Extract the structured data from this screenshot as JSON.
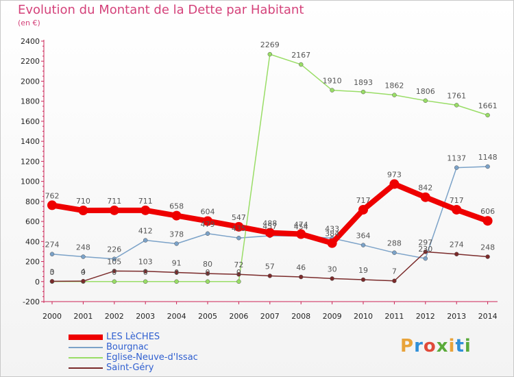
{
  "title": "Evolution du Montant de la Dette par Habitant",
  "subtitle": "(en €)",
  "logo": {
    "text": "Proxiti",
    "letter_colors": [
      "#e8a33a",
      "#2f8fd8",
      "#e04a3a",
      "#5aaa3a",
      "#e8a33a",
      "#2f8fd8",
      "#5aaa3a"
    ]
  },
  "chart_data": {
    "type": "line",
    "title": "Evolution du Montant de la Dette par Habitant",
    "subtitle": "(en €)",
    "x": [
      2000,
      2001,
      2002,
      2003,
      2004,
      2005,
      2006,
      2007,
      2008,
      2009,
      2010,
      2011,
      2012,
      2013,
      2014
    ],
    "ylim": [
      -200,
      2400
    ],
    "yticks": [
      -200,
      0,
      200,
      400,
      600,
      800,
      1000,
      1200,
      1400,
      1600,
      1800,
      2000,
      2200,
      2400
    ],
    "grid": false,
    "legend_position": "bottom-left",
    "series": [
      {
        "name": "LES LèCHES",
        "color": "#ee0000",
        "width": 8,
        "marker": 7,
        "values": [
          762,
          710,
          711,
          711,
          658,
          604,
          547,
          488,
          474,
          384,
          717,
          973,
          842,
          717,
          606
        ],
        "labels": [
          "762",
          "710",
          "711",
          "711",
          "658",
          "604",
          "547",
          "488",
          "474",
          "384",
          "717",
          "973",
          "842",
          "717",
          "606"
        ]
      },
      {
        "name": "Bourgnac",
        "color": "#7ba2c8",
        "width": 1.5,
        "marker": 3,
        "values": [
          274,
          248,
          226,
          412,
          378,
          479,
          435,
          457,
          454,
          433,
          364,
          288,
          230,
          1137,
          1148
        ],
        "labels": [
          "274",
          "248",
          "226",
          "412",
          "378",
          "479",
          "435",
          "457",
          "454",
          "433",
          "364",
          "288",
          "230",
          "1137",
          "1148"
        ]
      },
      {
        "name": "Eglise-Neuve-d'Issac",
        "color": "#99dd66",
        "width": 1.5,
        "marker": 3,
        "values": [
          0,
          0,
          0,
          0,
          0,
          0,
          0,
          2269,
          2167,
          1910,
          1893,
          1862,
          1806,
          1761,
          1661
        ],
        "labels": [
          "0",
          "0",
          "0",
          "0",
          "0",
          "0",
          "0",
          "2269",
          "2167",
          "1910",
          "1893",
          "1862",
          "1806",
          "1761",
          "1661"
        ]
      },
      {
        "name": "Saint-Géry",
        "color": "#7a2a2a",
        "width": 1.5,
        "marker": 3,
        "values": [
          3,
          4,
          105,
          103,
          91,
          80,
          72,
          57,
          46,
          30,
          19,
          7,
          297,
          274,
          248
        ],
        "labels": [
          "3",
          "4",
          "105",
          "103",
          "91",
          "80",
          "72",
          "57",
          "46",
          "30",
          "19",
          "7",
          "297",
          "274",
          "248"
        ]
      }
    ]
  }
}
